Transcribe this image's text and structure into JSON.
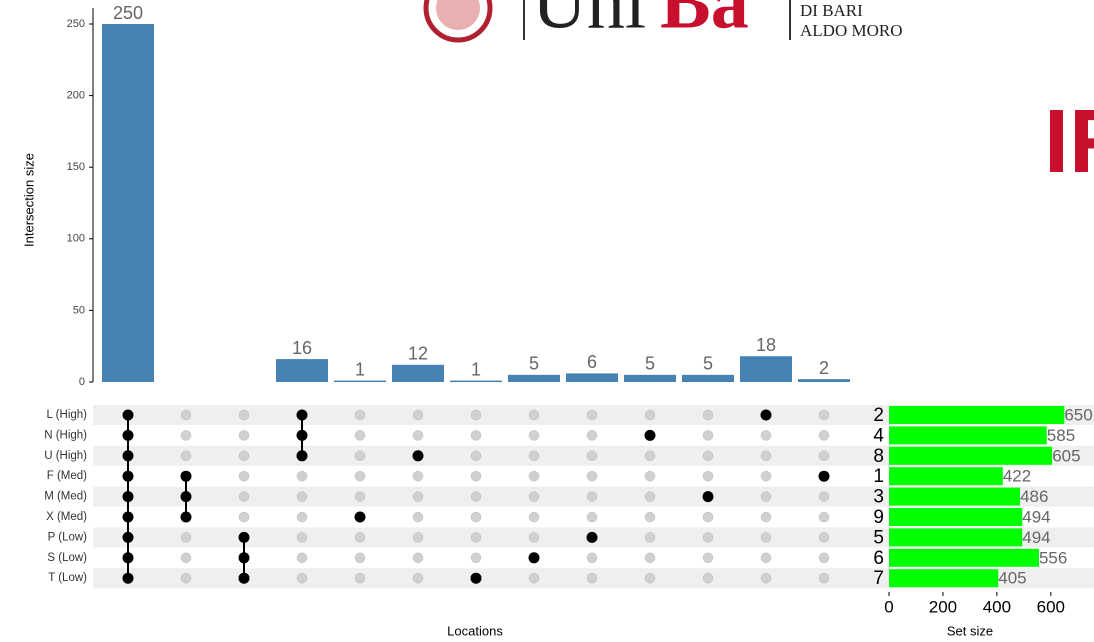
{
  "chart_data": {
    "type": "upset",
    "y_label": "Intersection size",
    "x_label": "Locations",
    "set_size_label": "Set size",
    "values": [
      250,
      null,
      null,
      16,
      1,
      12,
      1,
      5,
      6,
      5,
      5,
      18,
      2
    ],
    "color": "#4682b4",
    "ylim": [
      0,
      250
    ],
    "yticks": [
      0,
      50,
      100,
      150,
      200,
      250
    ],
    "sets": [
      "L (High)",
      "N (High)",
      "U (High)",
      "F (Med)",
      "M (Med)",
      "X (Med)",
      "P (Low)",
      "S (Low)",
      "T (Low)"
    ],
    "memberships": [
      [
        0,
        1,
        2,
        3,
        4,
        5,
        6,
        7,
        8
      ],
      [
        3,
        4,
        5
      ],
      [
        6,
        7,
        8
      ],
      [
        0,
        1,
        2
      ],
      [
        5
      ],
      [
        2
      ],
      [
        8
      ],
      [
        7
      ],
      [
        6
      ],
      [
        1
      ],
      [
        4
      ],
      [
        0
      ],
      [
        3
      ]
    ],
    "set_ranks": [
      2,
      4,
      8,
      1,
      3,
      9,
      5,
      6,
      7
    ],
    "set_sizes": [
      650,
      585,
      605,
      422,
      486,
      494,
      494,
      556,
      405
    ],
    "set_color": "#00ff00",
    "set_xlim": [
      0,
      760
    ],
    "set_xticks": [
      0,
      200,
      400,
      600
    ]
  },
  "logos": {
    "uni": "Uni",
    "ba": "Ba",
    "line1": "DI BARI",
    "line2": "ALDO MORO",
    "side": "IR"
  }
}
